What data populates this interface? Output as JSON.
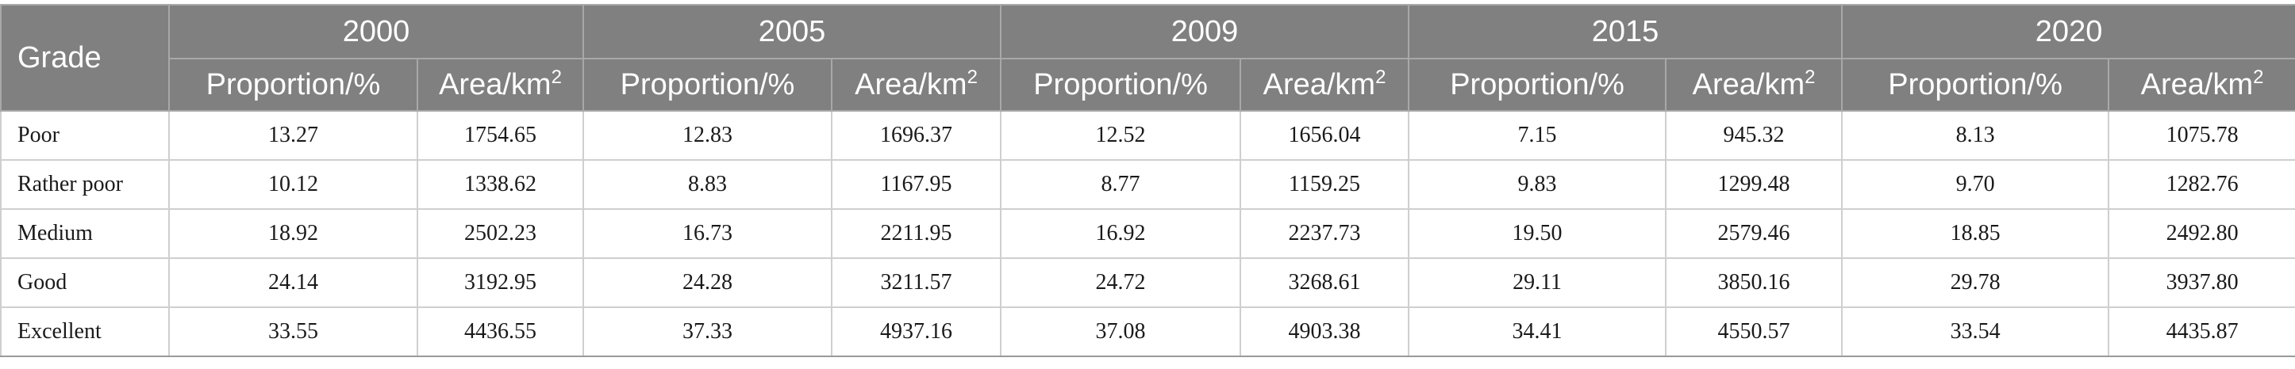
{
  "table": {
    "grade_header": "Grade",
    "years": [
      "2000",
      "2005",
      "2009",
      "2015",
      "2020"
    ],
    "sub_headers": {
      "proportion": "Proportion/%",
      "area": "Area/km",
      "area_sup": "2"
    },
    "rows": [
      {
        "grade": "Poor",
        "values": [
          "13.27",
          "1754.65",
          "12.83",
          "1696.37",
          "12.52",
          "1656.04",
          "7.15",
          "945.32",
          "8.13",
          "1075.78"
        ]
      },
      {
        "grade": "Rather poor",
        "values": [
          "10.12",
          "1338.62",
          "8.83",
          "1167.95",
          "8.77",
          "1159.25",
          "9.83",
          "1299.48",
          "9.70",
          "1282.76"
        ]
      },
      {
        "grade": "Medium",
        "values": [
          "18.92",
          "2502.23",
          "16.73",
          "2211.95",
          "16.92",
          "2237.73",
          "19.50",
          "2579.46",
          "18.85",
          "2492.80"
        ]
      },
      {
        "grade": "Good",
        "values": [
          "24.14",
          "3192.95",
          "24.28",
          "3211.57",
          "24.72",
          "3268.61",
          "29.11",
          "3850.16",
          "29.78",
          "3937.80"
        ]
      },
      {
        "grade": "Excellent",
        "values": [
          "33.55",
          "4436.55",
          "37.33",
          "4937.16",
          "37.08",
          "4903.38",
          "34.41",
          "4550.57",
          "33.54",
          "4435.87"
        ]
      }
    ]
  },
  "colors": {
    "header_bg": "#808080",
    "header_text": "#ffffff",
    "cell_border": "#cfcfcf"
  }
}
